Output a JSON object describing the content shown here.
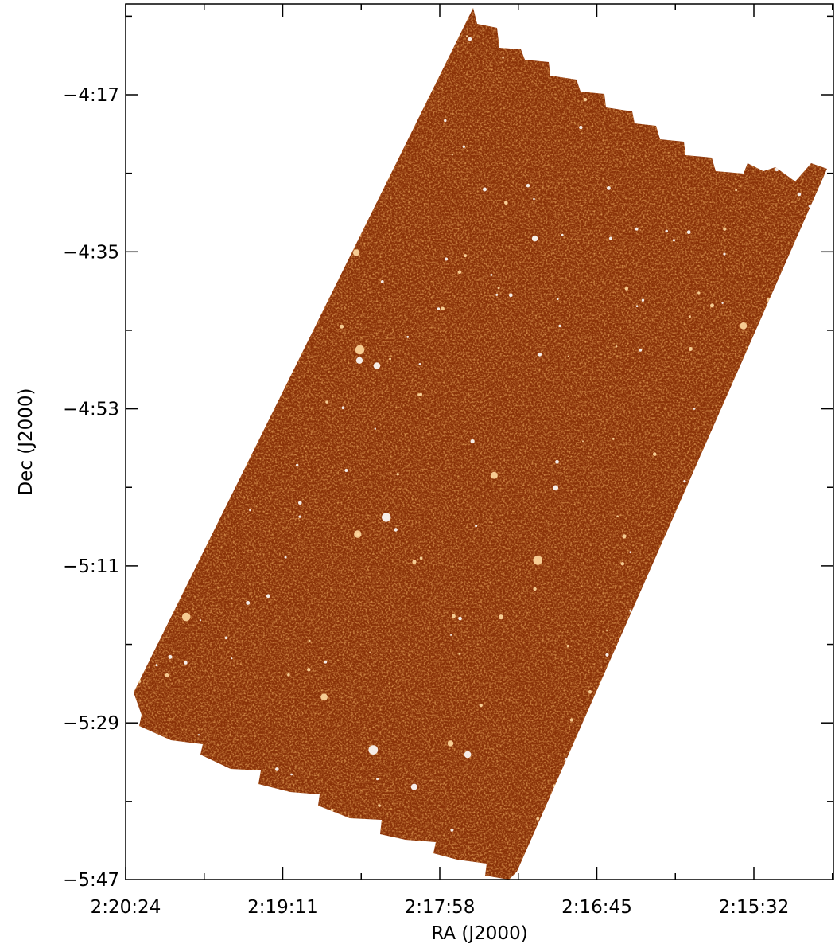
{
  "axes": {
    "xlabel": "RA (J2000)",
    "ylabel": "Dec (J2000)",
    "xticks": [
      "2:20:24",
      "2:19:11",
      "2:17:58",
      "2:16:45",
      "2:15:32"
    ],
    "yticks": [
      "−4:17",
      "−4:35",
      "−4:53",
      "−5:11",
      "−5:29",
      "−5:47"
    ]
  }
}
